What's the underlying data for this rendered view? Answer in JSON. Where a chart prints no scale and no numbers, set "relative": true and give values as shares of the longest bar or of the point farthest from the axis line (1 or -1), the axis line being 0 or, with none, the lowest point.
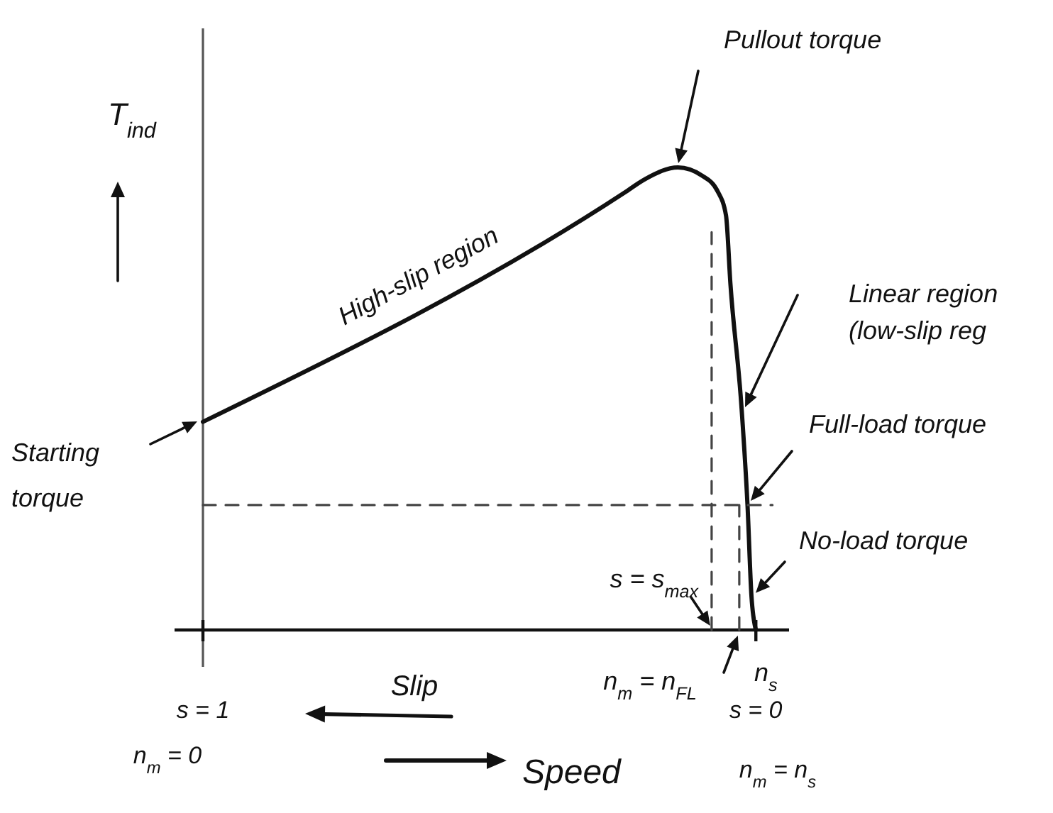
{
  "chart_data": {
    "type": "line",
    "relative": true,
    "ylabel": "T$_{ind}$",
    "xlabel": "Speed",
    "xlim": [
      1,
      -0.06
    ],
    "xticks": [
      {
        "value": 1,
        "label": "s = 1"
      },
      {
        "value": 0,
        "label": "s = 0"
      }
    ],
    "series": [
      {
        "color": "#111111",
        "line_style": "solid",
        "x": [
          1,
          0.238,
          0.2,
          0.141,
          0.097,
          0.069,
          0.054,
          0.046,
          0.026,
          0.015,
          0.008,
          0
        ],
        "values": [
          0.45,
          0.945,
          0.975,
          1,
          0.982,
          0.948,
          0.896,
          0.748,
          0.482,
          0.267,
          0.074,
          0
        ]
      },
      {
        "type": "line",
        "color": "#444444",
        "line_style": "dashed",
        "x": [
          0.08,
          0.08
        ],
        "values": [
          0,
          0.86
        ]
      },
      {
        "type": "line",
        "color": "#444444",
        "line_style": "dashed",
        "x": [
          0.03,
          0.03
        ],
        "values": [
          0,
          0.27
        ]
      },
      {
        "type": "line",
        "color": "#444444",
        "line_style": "dashed",
        "x": [
          1,
          -0.03
        ],
        "values": [
          0.27,
          0.27
        ]
      }
    ],
    "annotations": [
      "Pullout torque",
      "High-slip region",
      "Linear region\n(low-slip reg",
      "Full-load torque",
      {
        "text": "No-load torque",
        "x": 0.008,
        "y": 0.074
      },
      "Starting\ntorque",
      {
        "text": "s = s$_{max}$",
        "x": 0.08,
        "y": 0
      },
      {
        "text": "n$_{m}$ = n$_{FL}$",
        "x": 0.03,
        "y": 0
      },
      "Slip",
      {
        "text": "n$_{s}$",
        "x": 0,
        "y": 0
      },
      "n$_{m}$ = 0",
      "n$_{m}$ = n$_{s}$"
    ],
    "grid": false,
    "marker": "none"
  }
}
